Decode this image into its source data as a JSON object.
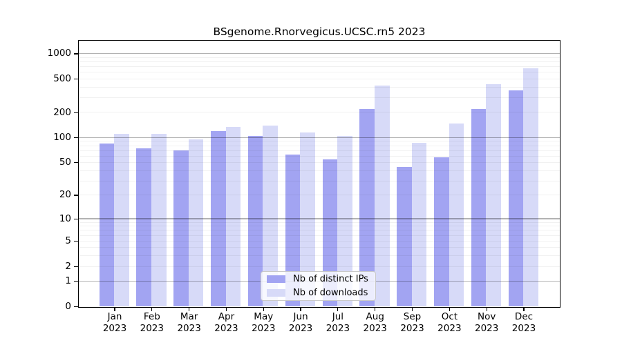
{
  "title": "BSgenome.Rnorvegicus.UCSC.rn5 2023",
  "chart_data": {
    "type": "bar",
    "title": "BSgenome.Rnorvegicus.UCSC.rn5 2023",
    "categories": [
      "Jan 2023",
      "Feb 2023",
      "Mar 2023",
      "Apr 2023",
      "May 2023",
      "Jun 2023",
      "Jul 2023",
      "Aug 2023",
      "Sep 2023",
      "Oct 2023",
      "Nov 2023",
      "Dec 2023"
    ],
    "series": [
      {
        "name": "Nb of distinct IPs",
        "color": "#a2a4f2",
        "values": [
          85,
          75,
          70,
          120,
          105,
          62,
          55,
          220,
          44,
          58,
          220,
          365
        ]
      },
      {
        "name": "Nb of downloads",
        "color": "#d7daf8",
        "values": [
          110,
          110,
          95,
          135,
          140,
          115,
          105,
          420,
          87,
          148,
          435,
          670
        ]
      }
    ],
    "xlabel": "",
    "ylabel": "",
    "yscale": "log10(value+1)",
    "yticks": [
      0,
      1,
      2,
      5,
      10,
      20,
      50,
      100,
      200,
      500,
      1000
    ],
    "ylim": [
      0,
      1450
    ],
    "grid": true,
    "gridlines": {
      "major": [
        1,
        10,
        100,
        1000
      ],
      "minor": [
        2,
        3,
        4,
        5,
        6,
        7,
        8,
        9,
        20,
        30,
        40,
        50,
        60,
        70,
        80,
        90,
        200,
        300,
        400,
        500,
        600,
        700,
        800,
        900
      ]
    },
    "legend_position": "bottom-center"
  },
  "legend": {
    "items": [
      "Nb of distinct IPs",
      "Nb of downloads"
    ]
  }
}
